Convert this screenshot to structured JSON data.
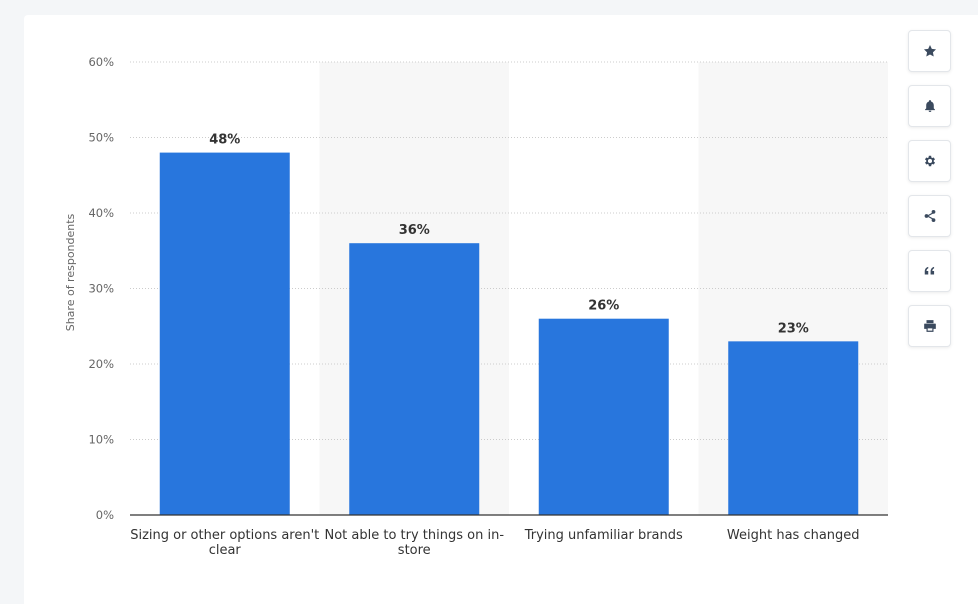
{
  "toolbar": {
    "buttons": [
      {
        "icon": "star-icon"
      },
      {
        "icon": "bell-icon"
      },
      {
        "icon": "gear-icon"
      },
      {
        "icon": "share-icon"
      },
      {
        "icon": "quote-icon"
      },
      {
        "icon": "print-icon"
      }
    ]
  },
  "chart_data": {
    "type": "bar",
    "title": "",
    "xlabel": "",
    "ylabel": "Share of respondents",
    "categories": [
      [
        "Sizing or other options aren't",
        "clear"
      ],
      [
        "Not able to try things on in-",
        "store"
      ],
      [
        "Trying unfamiliar brands"
      ],
      [
        "Weight has changed"
      ]
    ],
    "values": [
      48,
      36,
      26,
      23
    ],
    "data_labels": [
      "48%",
      "36%",
      "26%",
      "23%"
    ],
    "ylim": [
      0,
      60
    ],
    "yticks": [
      0,
      10,
      20,
      30,
      40,
      50,
      60
    ],
    "ytick_labels": [
      "0%",
      "10%",
      "20%",
      "30%",
      "40%",
      "50%",
      "60%"
    ],
    "grid": true,
    "colors": {
      "bar": "#2876dd",
      "band": "#f7f7f7",
      "grid": "#cccccc",
      "axis": "#333333"
    }
  }
}
